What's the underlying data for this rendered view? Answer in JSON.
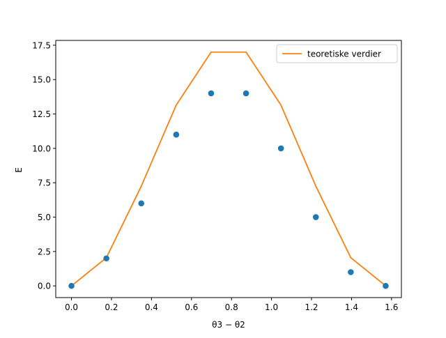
{
  "chart_data": {
    "type": "scatter",
    "xlabel": "θ3 − θ2",
    "ylabel": "E",
    "xlim": [
      -0.0785,
      1.6493
    ],
    "ylim": [
      -0.85,
      17.85
    ],
    "x_ticks": [
      0.0,
      0.2,
      0.4,
      0.6,
      0.8,
      1.0,
      1.2,
      1.4,
      1.6
    ],
    "x_tick_labels": [
      "0.0",
      "0.2",
      "0.4",
      "0.6",
      "0.8",
      "1.0",
      "1.2",
      "1.4",
      "1.6"
    ],
    "y_ticks": [
      0.0,
      2.5,
      5.0,
      7.5,
      10.0,
      12.5,
      15.0,
      17.5
    ],
    "y_tick_labels": [
      "0.0",
      "2.5",
      "5.0",
      "7.5",
      "10.0",
      "12.5",
      "15.0",
      "17.5"
    ],
    "grid": false,
    "legend_position": "top-right",
    "series": [
      {
        "kind": "scatter",
        "color": "#1f77b4",
        "x": [
          0.0,
          0.1745,
          0.349,
          0.5236,
          0.6981,
          0.8727,
          1.0472,
          1.2217,
          1.3963,
          1.5708
        ],
        "y": [
          0,
          2,
          6,
          11,
          14,
          14,
          10,
          5,
          1,
          0
        ]
      },
      {
        "kind": "line",
        "name": "teoretiske verdier",
        "color": "#ff7f0e",
        "x": [
          0.0,
          0.1745,
          0.349,
          0.5236,
          0.6981,
          0.8727,
          1.0472,
          1.2217,
          1.3963,
          1.5708
        ],
        "y": [
          0.0,
          2.05,
          7.25,
          13.15,
          17.0,
          17.0,
          13.15,
          7.25,
          2.05,
          0.0
        ]
      }
    ]
  }
}
